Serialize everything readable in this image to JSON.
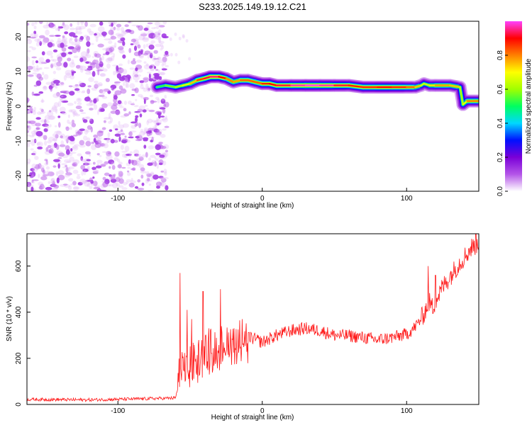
{
  "title": "S233.2025.149.19.12.C21",
  "chart_data": [
    {
      "type": "heatmap",
      "xlabel": "Height of straight line (km)",
      "ylabel": "Frequency (Hz)",
      "xlim": [
        -163,
        150
      ],
      "ylim": [
        -24.5,
        24.5
      ],
      "x_ticks": [
        -100,
        0,
        100
      ],
      "y_ticks": [
        20,
        10,
        0,
        -10,
        -20
      ],
      "colorbar": {
        "label": "Normalized spectral amplitude",
        "range": [
          0.0,
          1.0
        ],
        "ticks": [
          0.0,
          0.2,
          0.4,
          0.6,
          0.8
        ],
        "colors": [
          "#ffffff",
          "#b455e8",
          "#7a00d8",
          "#0010ff",
          "#00d8ff",
          "#00ff60",
          "#a0ff00",
          "#ffff00",
          "#ff8000",
          "#ff0000",
          "#ff40ff"
        ]
      },
      "noise_region_x": [
        -163,
        -68
      ],
      "ridge": {
        "x": [
          -73,
          -67,
          -60,
          -55,
          -50,
          -45,
          -40,
          -36,
          -30,
          -25,
          -20,
          -15,
          -10,
          -5,
          0,
          5,
          10,
          20,
          30,
          40,
          50,
          60,
          70,
          80,
          90,
          100,
          106,
          110,
          112,
          116,
          120,
          130,
          137,
          139,
          142,
          150
        ],
        "freq": [
          5.5,
          6,
          5.5,
          6,
          6.5,
          7.5,
          8,
          8.5,
          8.5,
          8,
          7,
          7.5,
          7.5,
          7,
          6.5,
          6.5,
          6,
          6,
          6,
          6,
          6,
          6,
          5.5,
          5.5,
          5.5,
          5.5,
          5.5,
          6,
          6.5,
          6,
          6,
          6,
          5.5,
          0.5,
          1.5,
          1.5
        ],
        "amplitude": [
          0.5,
          0.55,
          0.6,
          0.65,
          0.7,
          0.8,
          0.9,
          0.95,
          0.95,
          0.85,
          0.75,
          0.8,
          0.85,
          0.8,
          0.85,
          0.9,
          0.9,
          0.95,
          1.0,
          1.0,
          0.95,
          0.9,
          0.85,
          0.9,
          0.9,
          0.85,
          0.8,
          0.7,
          0.6,
          0.7,
          0.75,
          0.8,
          0.7,
          0.55,
          0.8,
          0.8
        ]
      }
    },
    {
      "type": "line",
      "xlabel": "Height of straight line (km)",
      "ylabel": "SNR (10 * v/v)",
      "xlim": [
        -163,
        150
      ],
      "ylim": [
        0,
        740
      ],
      "x_ticks": [
        -100,
        0,
        100
      ],
      "y_ticks": [
        0,
        200,
        400,
        600
      ],
      "color": "#ff1a1a",
      "x": [
        -163,
        -120,
        -80,
        -60,
        -59,
        -58,
        -55,
        -50,
        -45,
        -40,
        -35,
        -30,
        -25,
        -20,
        -10,
        0,
        10,
        20,
        30,
        40,
        50,
        60,
        70,
        80,
        90,
        100,
        105,
        110,
        114,
        115,
        118,
        125,
        135,
        145,
        150
      ],
      "y": [
        22,
        20,
        25,
        28,
        60,
        120,
        150,
        180,
        200,
        230,
        250,
        260,
        270,
        285,
        295,
        270,
        300,
        320,
        330,
        320,
        300,
        298,
        290,
        280,
        290,
        305,
        330,
        370,
        420,
        450,
        420,
        510,
        600,
        680,
        700
      ],
      "spikes": [
        {
          "x": -57,
          "y": 570
        },
        {
          "x": -52,
          "y": 410
        },
        {
          "x": -49,
          "y": 370
        },
        {
          "x": -41,
          "y": 490
        },
        {
          "x": -37,
          "y": 330
        },
        {
          "x": -29,
          "y": 500
        },
        {
          "x": -14,
          "y": 370
        },
        {
          "x": 115,
          "y": 600
        },
        {
          "x": 120,
          "y": 560
        },
        {
          "x": 148,
          "y": 740
        }
      ]
    }
  ]
}
